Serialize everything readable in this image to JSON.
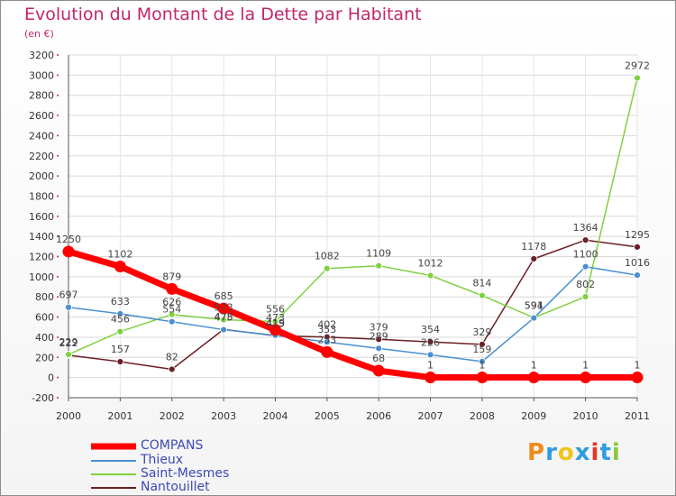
{
  "title": "Evolution du Montant de la Dette par Habitant",
  "subtitle": "(en €)",
  "logo": {
    "text": "Proxiti",
    "letter_colors": [
      "#f08a1c",
      "#2d9de0",
      "#f0c419",
      "#2d9de0",
      "#e8342a",
      "#2d9de0",
      "#8cc63f"
    ]
  },
  "chart_data": {
    "type": "line",
    "title": "Evolution du Montant de la Dette par Habitant",
    "subtitle": "(en €)",
    "xlabel": "",
    "ylabel": "",
    "categories": [
      "2000",
      "2001",
      "2002",
      "2003",
      "2004",
      "2005",
      "2006",
      "2007",
      "2008",
      "2009",
      "2010",
      "2011"
    ],
    "ylim": [
      -200,
      3200
    ],
    "yticks": [
      -200,
      0,
      200,
      400,
      600,
      800,
      1000,
      1200,
      1400,
      1600,
      1800,
      2000,
      2200,
      2400,
      2600,
      2800,
      3000,
      3200
    ],
    "grid": true,
    "legend": "bottom-left",
    "series": [
      {
        "name": "COMPANS",
        "color": "#ff0000",
        "values": [
          1250,
          1102,
          879,
          685,
          473,
          253,
          68,
          1,
          1,
          1,
          1,
          1
        ]
      },
      {
        "name": "Thieux",
        "color": "#4a8fd0",
        "values": [
          697,
          633,
          554,
          475,
          419,
          353,
          289,
          226,
          159,
          591,
          1100,
          1016
        ]
      },
      {
        "name": "Saint-Mesmes",
        "color": "#7ed13f",
        "values": [
          229,
          456,
          626,
          573,
          556,
          1082,
          1109,
          1012,
          814,
          594,
          802,
          2972
        ]
      },
      {
        "name": "Nantouillet",
        "color": "#6b1f24",
        "values": [
          222,
          157,
          82,
          478,
          415,
          402,
          379,
          354,
          329,
          1178,
          1364,
          1295
        ]
      }
    ]
  }
}
